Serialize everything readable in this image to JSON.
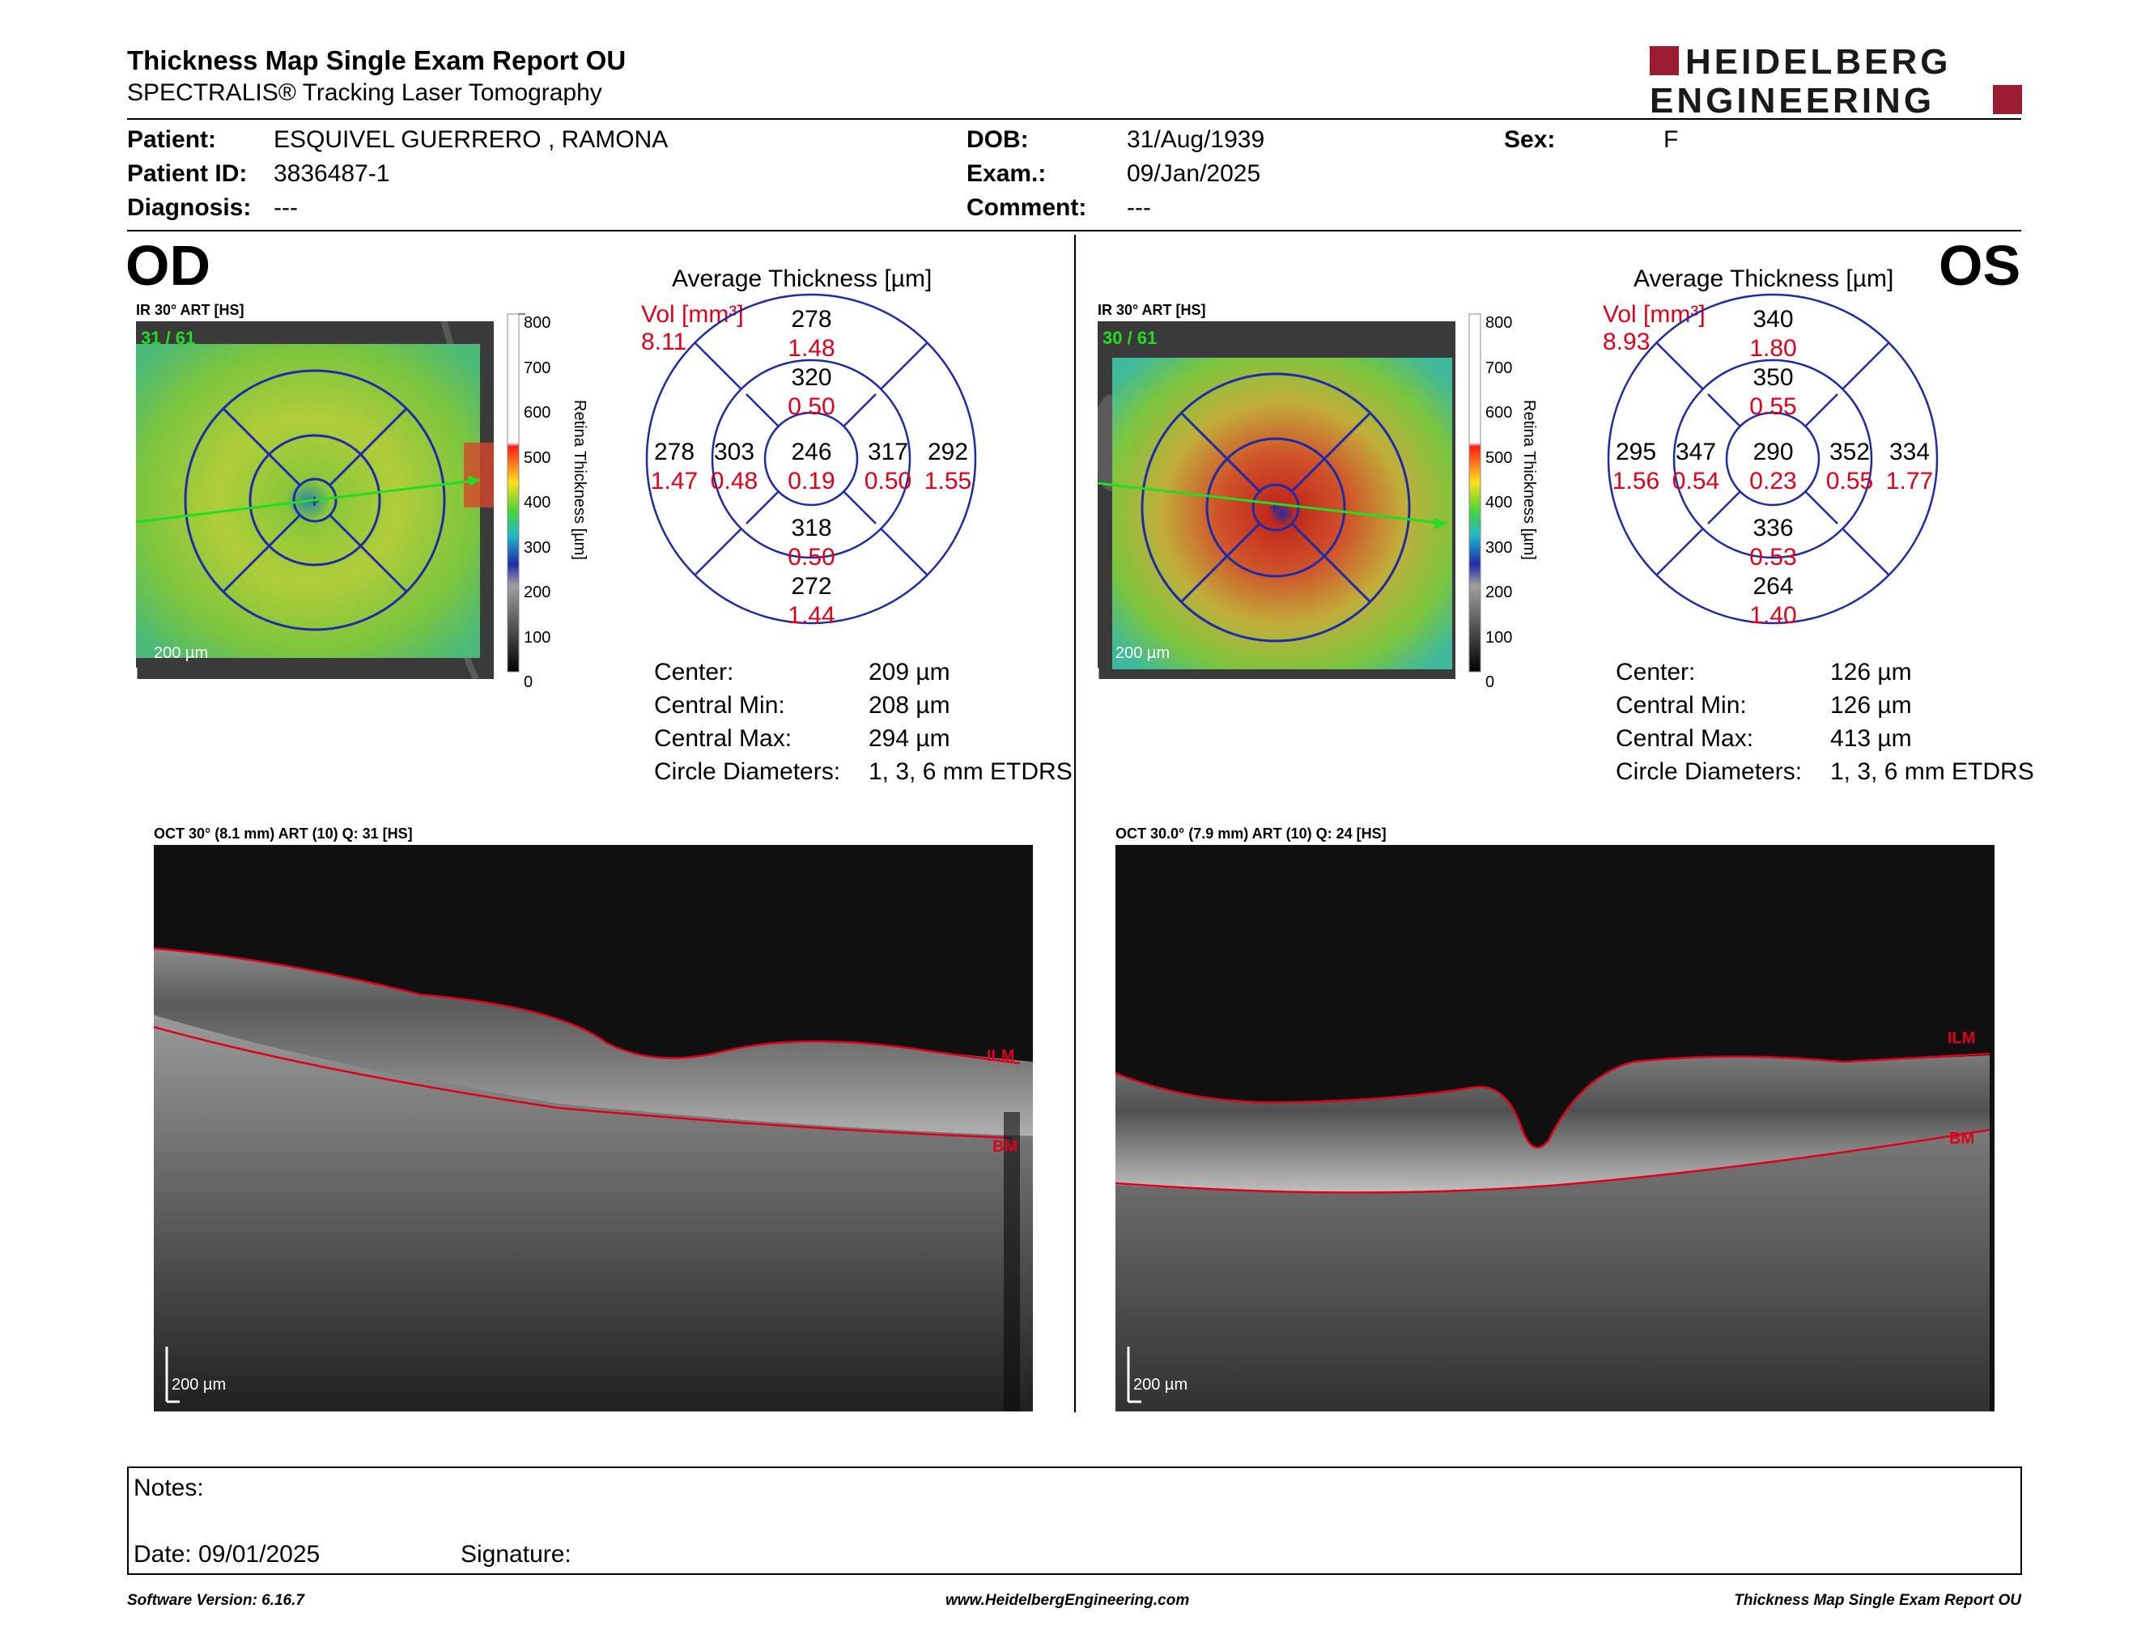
{
  "header": {
    "title": "Thickness Map Single Exam Report OU",
    "subtitle": "SPECTRALIS® Tracking Laser Tomography",
    "logo_line1": "HEIDELBERG",
    "logo_line2": "ENGINEERING"
  },
  "patient": {
    "patient_label": "Patient:",
    "patient_value": "ESQUIVEL GUERRERO , RAMONA",
    "id_label": "Patient ID:",
    "id_value": "3836487-1",
    "diagnosis_label": "Diagnosis:",
    "diagnosis_value": "---",
    "dob_label": "DOB:",
    "dob_value": "31/Aug/1939",
    "exam_label": "Exam.:",
    "exam_value": "09/Jan/2025",
    "comment_label": "Comment:",
    "comment_value": "---",
    "sex_label": "Sex:",
    "sex_value": "F"
  },
  "od": {
    "eye": "OD",
    "ir_label": "IR 30° ART [HS]",
    "frames": "31 / 61",
    "scale_bar": "200 µm",
    "avg_title": "Average Thickness [µm]",
    "vol_label": "Vol [mm³]",
    "vol_total": "8.11",
    "grid": {
      "center": {
        "t": "246",
        "v": "0.19"
      },
      "inner_sup": {
        "t": "320",
        "v": "0.50"
      },
      "inner_inf": {
        "t": "318",
        "v": "0.50"
      },
      "inner_left": {
        "t": "303",
        "v": "0.48"
      },
      "inner_right": {
        "t": "317",
        "v": "0.50"
      },
      "outer_sup": {
        "t": "278",
        "v": "1.48"
      },
      "outer_inf": {
        "t": "272",
        "v": "1.44"
      },
      "outer_left": {
        "t": "278",
        "v": "1.47"
      },
      "outer_right": {
        "t": "292",
        "v": "1.55"
      }
    },
    "stats": [
      {
        "label": "Center:",
        "value": "209 µm"
      },
      {
        "label": "Central Min:",
        "value": "208 µm"
      },
      {
        "label": "Central Max:",
        "value": "294 µm"
      },
      {
        "label": "Circle Diameters:",
        "value": "1, 3, 6 mm ETDRS"
      }
    ],
    "oct_label": "OCT 30° (8.1 mm) ART (10) Q: 31 [HS]",
    "oct_scale": "200 µm",
    "ilm": "ILM",
    "bm": "BM"
  },
  "os": {
    "eye": "OS",
    "ir_label": "IR 30° ART [HS]",
    "frames": "30 / 61",
    "scale_bar": "200 µm",
    "avg_title": "Average Thickness [µm]",
    "vol_label": "Vol [mm³]",
    "vol_total": "8.93",
    "grid": {
      "center": {
        "t": "290",
        "v": "0.23"
      },
      "inner_sup": {
        "t": "350",
        "v": "0.55"
      },
      "inner_inf": {
        "t": "336",
        "v": "0.53"
      },
      "inner_left": {
        "t": "347",
        "v": "0.54"
      },
      "inner_right": {
        "t": "352",
        "v": "0.55"
      },
      "outer_sup": {
        "t": "340",
        "v": "1.80"
      },
      "outer_inf": {
        "t": "264",
        "v": "1.40"
      },
      "outer_left": {
        "t": "295",
        "v": "1.56"
      },
      "outer_right": {
        "t": "334",
        "v": "1.77"
      }
    },
    "stats": [
      {
        "label": "Center:",
        "value": "126 µm"
      },
      {
        "label": "Central Min:",
        "value": "126 µm"
      },
      {
        "label": "Central Max:",
        "value": "413 µm"
      },
      {
        "label": "Circle Diameters:",
        "value": "1, 3, 6 mm ETDRS"
      }
    ],
    "oct_label": "OCT 30.0° (7.9 mm) ART (10) Q: 24 [HS]",
    "oct_scale": "200 µm",
    "ilm": "ILM",
    "bm": "BM"
  },
  "colorbar": {
    "title": "Retina Thickness [µm]",
    "ticks": [
      "800",
      "700",
      "600",
      "500",
      "400",
      "300",
      "200",
      "100",
      "0"
    ]
  },
  "notes": {
    "notes_label": "Notes:",
    "date_label": "Date: 09/01/2025",
    "signature_label": "Signature:"
  },
  "footer": {
    "version": "Software Version: 6.16.7",
    "url": "www.HeidelbergEngineering.com",
    "report": "Thickness Map Single Exam Report OU"
  },
  "colors": {
    "accent_red": "#e0001a",
    "grid_blue": "#1f2aa8",
    "logo_red": "#9b1b30",
    "scan_green": "#22dd22"
  }
}
